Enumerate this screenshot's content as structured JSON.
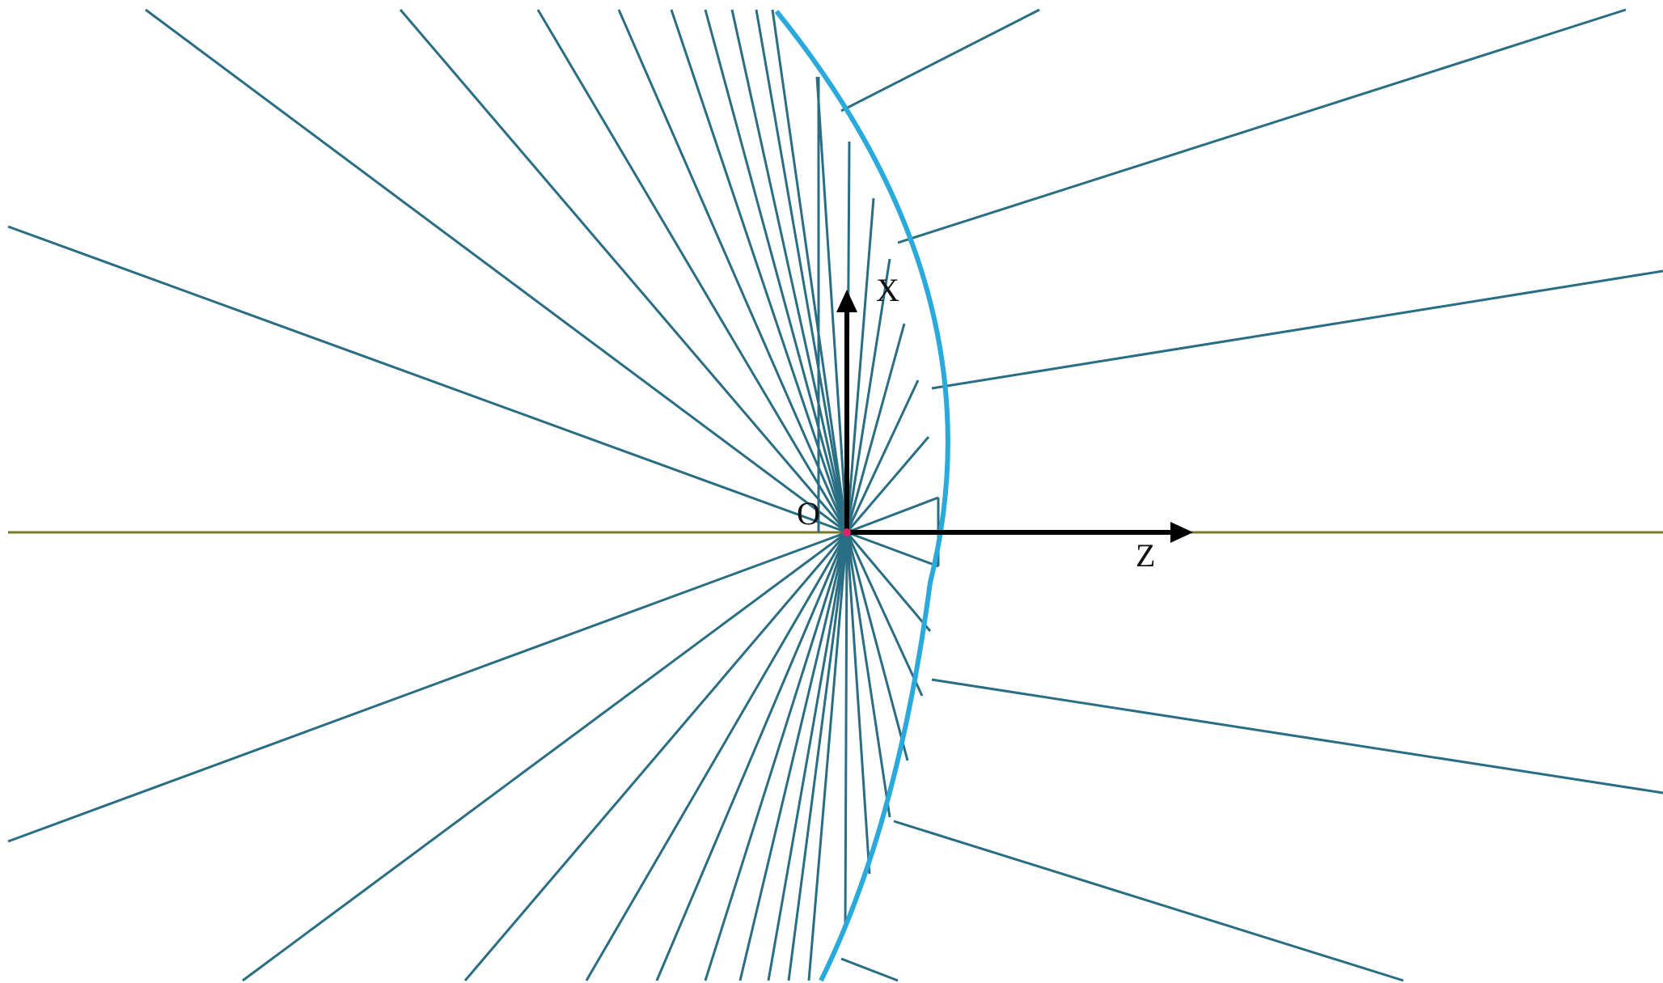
{
  "labels": {
    "origin": "O",
    "x_axis": "X",
    "z_axis": "Z"
  },
  "colors": {
    "ray": "#2a6e84",
    "lens_surface": "#2aa9dc",
    "optical_axis": "#7a7a2a",
    "axis_arrow": "#000000",
    "origin_marker": "#e0206a",
    "background": "#ffffff"
  },
  "diagram": {
    "description_elements": [
      "optical-axis",
      "rays",
      "lens-surface",
      "coordinate-axes"
    ]
  }
}
